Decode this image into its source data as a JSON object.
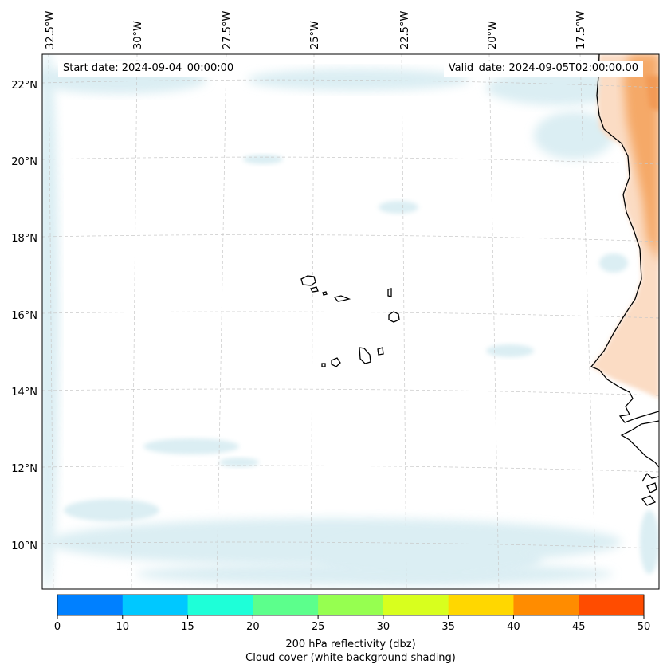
{
  "header": {
    "start_date": "Start date: 2024-09-04_00:00:00",
    "valid_date": "Valid_date: 2024-09-05T02:00:00.00"
  },
  "map": {
    "lon_labels": [
      "32.5°W",
      "30°W",
      "27.5°W",
      "25°W",
      "22.5°W",
      "20°W",
      "17.5°W"
    ],
    "lat_labels": [
      "22°N",
      "20°N",
      "18°N",
      "16°N",
      "14°N",
      "12°N",
      "10°N"
    ]
  },
  "colorbar": {
    "ticks": [
      "0",
      "10",
      "15",
      "20",
      "25",
      "30",
      "35",
      "40",
      "45",
      "50"
    ],
    "colors": [
      "#0080ff",
      "#00c8ff",
      "#1effd8",
      "#5cff8c",
      "#96ff50",
      "#d8ff1e",
      "#ffd700",
      "#ff8c00",
      "#ff4c00"
    ],
    "label": "200 hPa reflectivity (dbz)",
    "sublabel": "Cloud cover (white background shading)"
  }
}
